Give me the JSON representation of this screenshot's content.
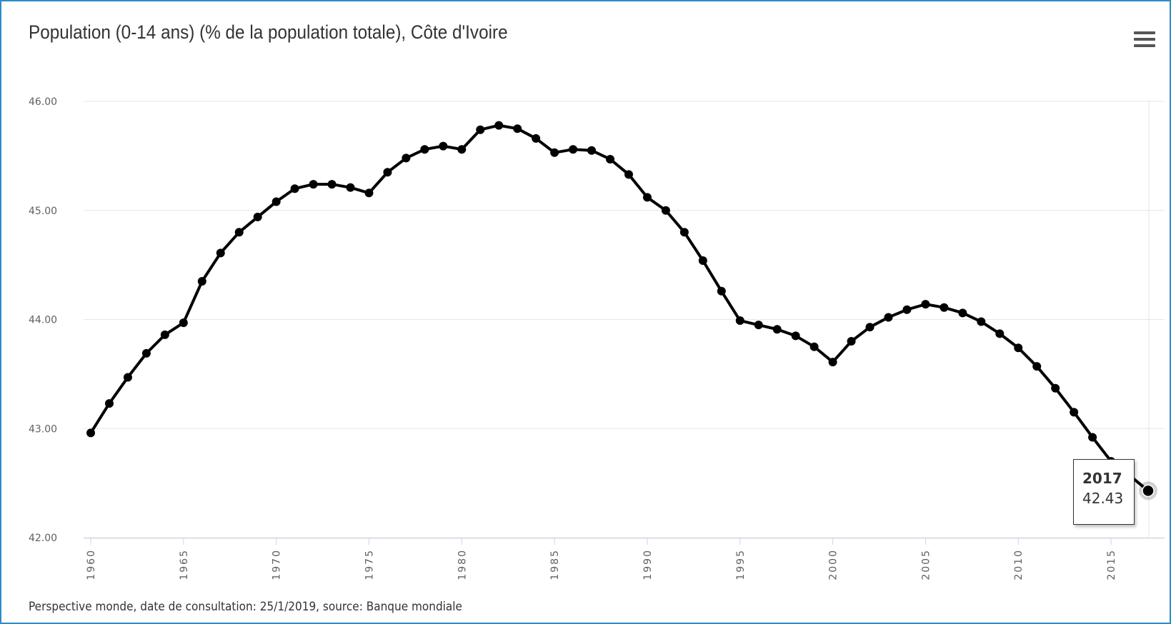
{
  "chart_data": {
    "type": "line",
    "title": "Population (0-14 ans) (% de la population totale), Côte d'Ivoire",
    "xlabel": "",
    "ylabel": "",
    "ylim": [
      42,
      46
    ],
    "xlim": [
      1960,
      2017
    ],
    "yticks": [
      "42.00",
      "43.00",
      "44.00",
      "45.00",
      "46.00"
    ],
    "xticks": [
      "1960",
      "1965",
      "1970",
      "1975",
      "1980",
      "1985",
      "1990",
      "1995",
      "2000",
      "2005",
      "2010",
      "2015"
    ],
    "grid": true,
    "legend": "none",
    "series": [
      {
        "color": "#000000",
        "x": [
          1960,
          1961,
          1962,
          1963,
          1964,
          1965,
          1966,
          1967,
          1968,
          1969,
          1970,
          1971,
          1972,
          1973,
          1974,
          1975,
          1976,
          1977,
          1978,
          1979,
          1980,
          1981,
          1982,
          1983,
          1984,
          1985,
          1986,
          1987,
          1988,
          1989,
          1990,
          1991,
          1992,
          1993,
          1994,
          1995,
          1996,
          1997,
          1998,
          1999,
          2000,
          2001,
          2002,
          2003,
          2004,
          2005,
          2006,
          2007,
          2008,
          2009,
          2010,
          2011,
          2012,
          2013,
          2014,
          2015,
          2016,
          2017
        ],
        "values": [
          42.96,
          43.23,
          43.47,
          43.69,
          43.86,
          43.97,
          44.35,
          44.61,
          44.8,
          44.94,
          45.08,
          45.2,
          45.24,
          45.24,
          45.21,
          45.16,
          45.35,
          45.48,
          45.56,
          45.59,
          45.56,
          45.74,
          45.78,
          45.75,
          45.66,
          45.53,
          45.56,
          45.55,
          45.47,
          45.33,
          45.12,
          45.0,
          44.8,
          44.54,
          44.26,
          43.99,
          43.95,
          43.91,
          43.85,
          43.75,
          43.61,
          43.8,
          43.93,
          44.02,
          44.09,
          44.14,
          44.11,
          44.06,
          43.98,
          43.87,
          43.74,
          43.57,
          43.37,
          43.15,
          42.92,
          42.7,
          42.57,
          42.43
        ]
      }
    ],
    "tooltip": {
      "year": "2017",
      "value": "42.43"
    }
  },
  "footer": "Perspective monde, date de consultation: 25/1/2019, source: Banque mondiale",
  "menu_icon": "hamburger-menu-icon"
}
